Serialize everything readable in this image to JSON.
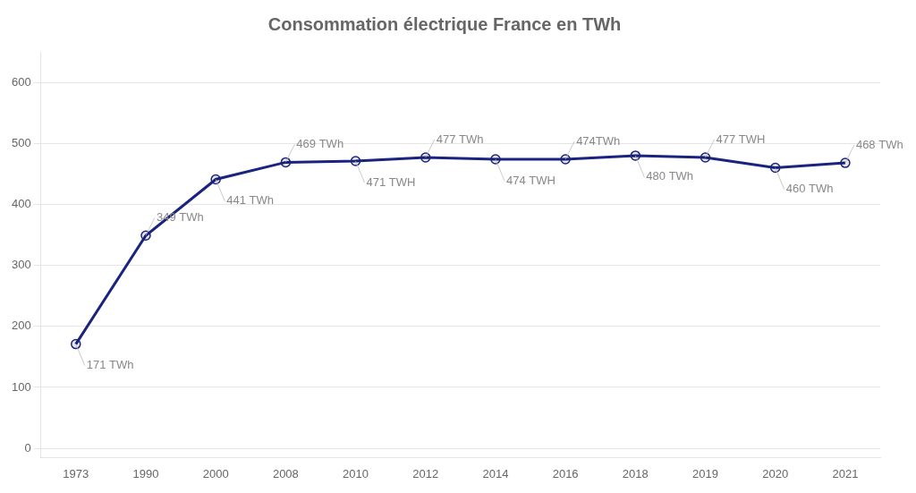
{
  "chart_data": {
    "type": "line",
    "title": "Consommation électrique France en TWh",
    "categories": [
      "1973",
      "1990",
      "2000",
      "2008",
      "2010",
      "2012",
      "2014",
      "2016",
      "2018",
      "2019",
      "2020",
      "2021"
    ],
    "values": [
      171,
      349,
      441,
      469,
      471,
      477,
      474,
      474,
      480,
      477,
      460,
      468
    ],
    "value_labels": [
      "171 TWh",
      "349 TWh",
      "441 TWh",
      "469 TWh",
      "471 TWH",
      "477 TWh",
      "474 TWH",
      "474TWh",
      "480 TWh",
      "477 TWH",
      "460 TWh",
      "468 TWh"
    ],
    "data_labels": true,
    "color": "#1a237e",
    "marker": "circle",
    "ylim": [
      -15,
      650
    ],
    "yticks": [
      0,
      100,
      200,
      300,
      400,
      500,
      600
    ],
    "grid": true
  }
}
